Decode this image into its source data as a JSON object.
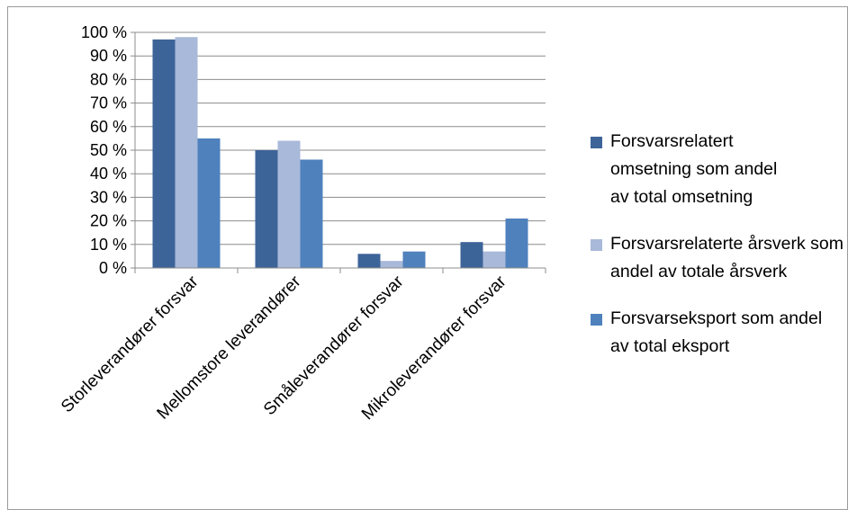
{
  "chart_data": {
    "type": "bar",
    "title": "",
    "xlabel": "",
    "ylabel": "",
    "ylim": [
      0,
      100
    ],
    "y_ticks": [
      0,
      10,
      20,
      30,
      40,
      50,
      60,
      70,
      80,
      90,
      100
    ],
    "y_tick_labels": [
      "0 %",
      "10 %",
      "20 %",
      "30 %",
      "40 %",
      "50 %",
      "60 %",
      "70 %",
      "80 %",
      "90 %",
      "100 %"
    ],
    "grid": true,
    "legend_position": "right",
    "categories": [
      "Storleverandører forsvar",
      "Mellomstore leverandører",
      "Småleverandører forsvar",
      "Mikroleverandører forsvar"
    ],
    "series": [
      {
        "name": "Forsvarsrelatert omsetning som andel av total omsetning",
        "color": "#3d6499",
        "values": [
          97,
          50,
          6,
          11
        ]
      },
      {
        "name": "Forsvarsrelaterte årsverk som andel av totale årsverk",
        "color": "#a8b9d9",
        "values": [
          98,
          54,
          3,
          7
        ]
      },
      {
        "name": "Forsvarseksport som andel av total eksport",
        "color": "#4f81bd",
        "values": [
          55,
          46,
          7,
          21
        ]
      }
    ]
  }
}
